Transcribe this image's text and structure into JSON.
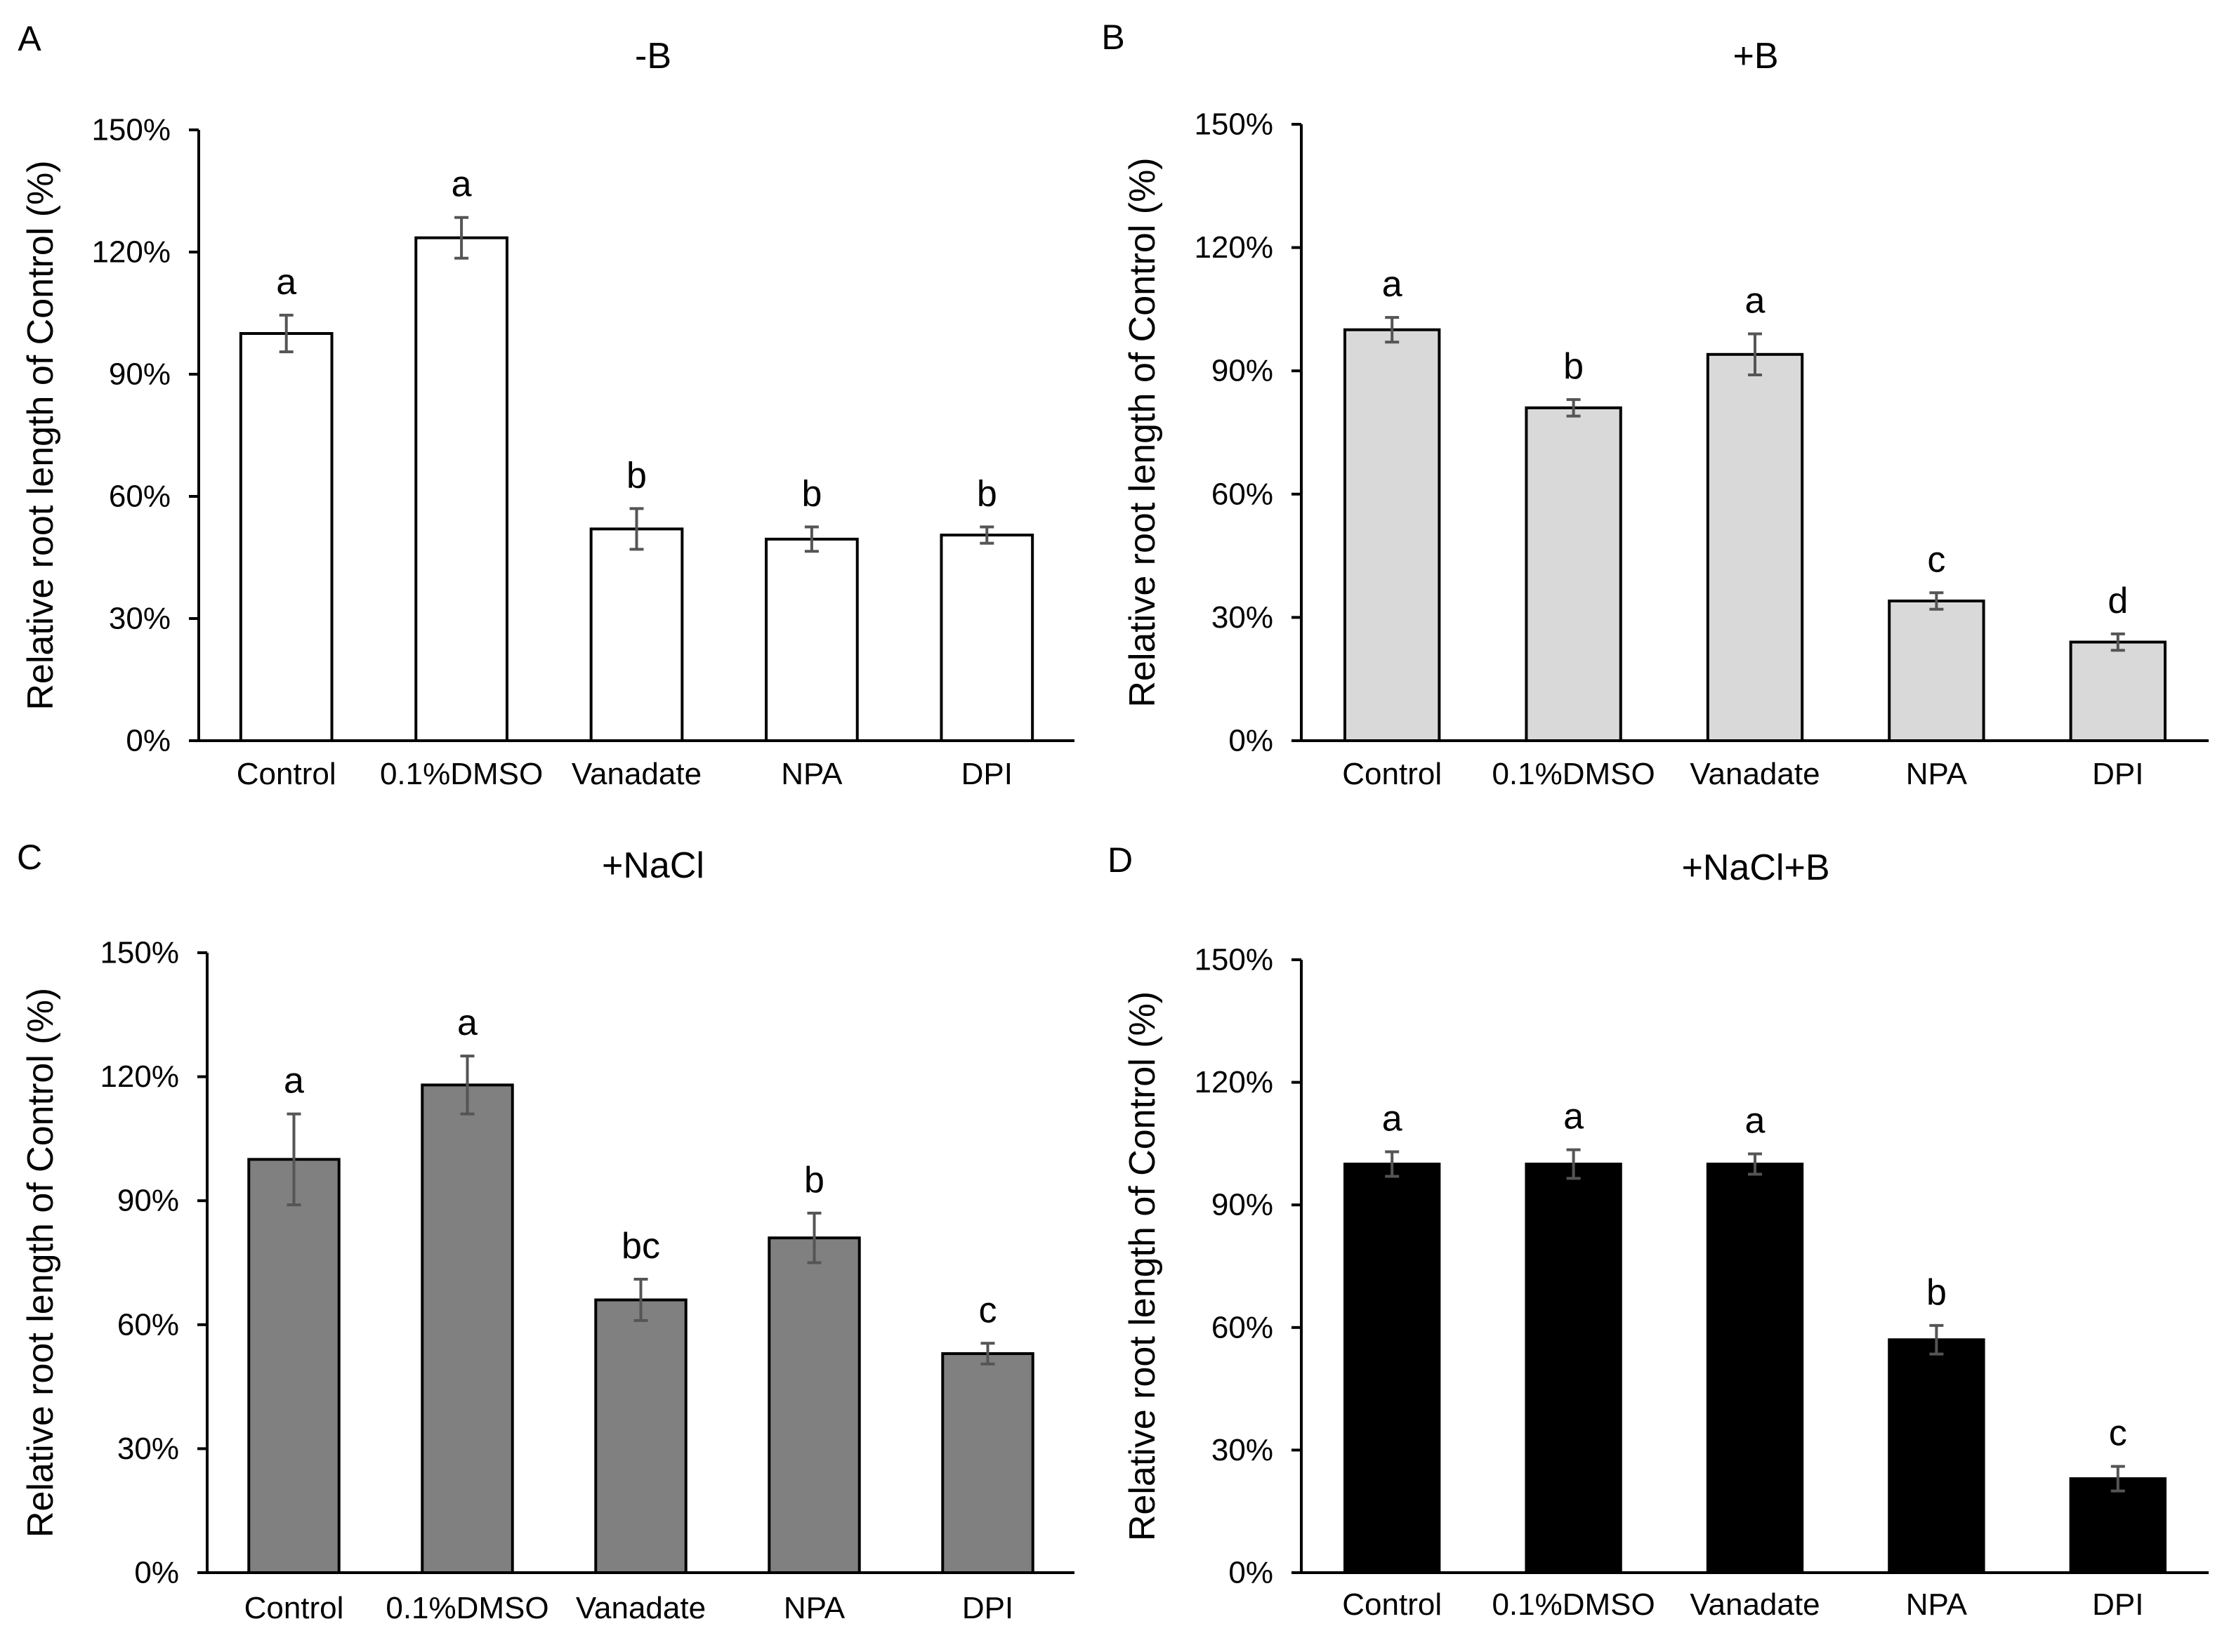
{
  "chart_data": [
    {
      "type": "bar",
      "panel_label": "A",
      "title": "-B",
      "ylabel": "Relative root length of Control (%)",
      "xlabel": "",
      "ylim": [
        0,
        150
      ],
      "yticks": [
        0,
        30,
        60,
        90,
        120,
        150
      ],
      "ytick_labels": [
        "0%",
        "30%",
        "60%",
        "90%",
        "120%",
        "150%"
      ],
      "categories": [
        "Control",
        "0.1%DMSO",
        "Vanadate",
        "NPA",
        "DPI"
      ],
      "values": [
        100,
        123.5,
        52,
        49.5,
        50.5
      ],
      "errors": [
        4.5,
        5,
        5,
        3,
        2
      ],
      "letters": [
        "a",
        "a",
        "b",
        "b",
        "b"
      ],
      "bar_color": "#ffffff",
      "grid": false
    },
    {
      "type": "bar",
      "panel_label": "B",
      "title": "+B",
      "ylabel": "Relative root length of Control (%)",
      "xlabel": "",
      "ylim": [
        0,
        150
      ],
      "yticks": [
        0,
        30,
        60,
        90,
        120,
        150
      ],
      "ytick_labels": [
        "0%",
        "30%",
        "60%",
        "90%",
        "120%",
        "150%"
      ],
      "categories": [
        "Control",
        "0.1%DMSO",
        "Vanadate",
        "NPA",
        "DPI"
      ],
      "values": [
        100,
        81,
        94,
        34,
        24
      ],
      "errors": [
        3,
        2,
        5,
        2,
        2
      ],
      "letters": [
        "a",
        "b",
        "a",
        "c",
        "d"
      ],
      "bar_color": "#d9d9d9",
      "grid": false
    },
    {
      "type": "bar",
      "panel_label": "C",
      "title": "+NaCl",
      "ylabel": "Relative root length of Control (%)",
      "xlabel": "",
      "ylim": [
        0,
        150
      ],
      "yticks": [
        0,
        30,
        60,
        90,
        120,
        150
      ],
      "ytick_labels": [
        "0%",
        "30%",
        "60%",
        "90%",
        "120%",
        "150%"
      ],
      "categories": [
        "Control",
        "0.1%DMSO",
        "Vanadate",
        "NPA",
        "DPI"
      ],
      "values": [
        100,
        118,
        66,
        81,
        53
      ],
      "errors": [
        11,
        7,
        5,
        6,
        2.5
      ],
      "letters": [
        "a",
        "a",
        "bc",
        "b",
        "c"
      ],
      "bar_color": "#808080",
      "grid": false
    },
    {
      "type": "bar",
      "panel_label": "D",
      "title": "+NaCl+B",
      "ylabel": "Relative root length of Control (%)",
      "xlabel": "",
      "ylim": [
        0,
        150
      ],
      "yticks": [
        0,
        30,
        60,
        90,
        120,
        150
      ],
      "ytick_labels": [
        "0%",
        "30%",
        "60%",
        "90%",
        "120%",
        "150%"
      ],
      "categories": [
        "Control",
        "0.1%DMSO",
        "Vanadate",
        "NPA",
        "DPI"
      ],
      "values": [
        100,
        100,
        100,
        57,
        23
      ],
      "errors": [
        3,
        3.5,
        2.5,
        3.5,
        3
      ],
      "letters": [
        "a",
        "a",
        "a",
        "b",
        "c"
      ],
      "bar_color": "#000000",
      "grid": false
    }
  ]
}
